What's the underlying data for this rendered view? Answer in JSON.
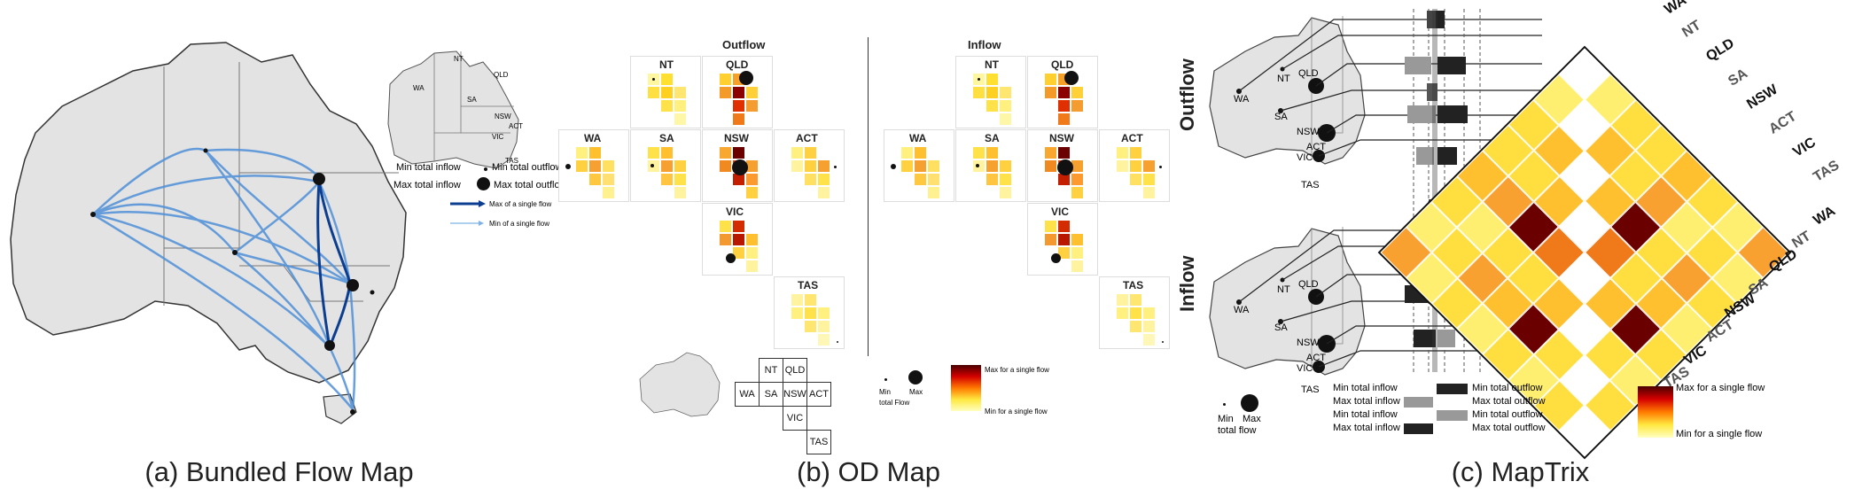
{
  "panel_a": {
    "caption": "(a) Bundled Flow Map",
    "legend": {
      "min_total_inflow": "Min total inflow",
      "min_total_outflow": "Min total outflow",
      "max_total_inflow": "Max total inflow",
      "max_total_outflow": "Max total outflow",
      "max_single": "Max of a single flow",
      "min_single": "Min of a single flow"
    },
    "inset_states": [
      "NT",
      "QLD",
      "WA",
      "SA",
      "NSW",
      "ACT",
      "VIC",
      "TAS"
    ]
  },
  "panel_b": {
    "caption": "(b) OD Map",
    "outflow_title": "Outflow",
    "inflow_title": "Inflow",
    "states": [
      "NT",
      "QLD",
      "WA",
      "SA",
      "NSW",
      "ACT",
      "VIC",
      "TAS"
    ],
    "grid_labels": [
      "NT",
      "QLD",
      "WA",
      "SA",
      "NSW",
      "ACT",
      "VIC",
      "TAS"
    ],
    "legend": {
      "min": "Min",
      "max": "Max",
      "total_flow": "total Flow",
      "max_single": "Max for a single flow",
      "min_single": "Min for a single flow"
    }
  },
  "panel_c": {
    "caption": "(c) MapTrix",
    "outflow_label": "Outflow",
    "inflow_label": "Inflow",
    "map_labels": [
      "NT",
      "QLD",
      "WA",
      "SA",
      "NSW",
      "ACT",
      "VIC",
      "TAS"
    ],
    "top_right_labels": [
      "WA",
      "NT",
      "QLD",
      "SA",
      "NSW",
      "ACT",
      "VIC",
      "TAS"
    ],
    "bottom_right_labels": [
      "WA",
      "NT",
      "QLD",
      "SA",
      "NSW",
      "ACT",
      "VIC",
      "TAS"
    ],
    "legend": {
      "min_total_inflow": "Min total inflow",
      "max_total_inflow_1": "Max total inflow",
      "min_total_inflow_2": "Min total inflow",
      "max_total_inflow_2": "Max total inflow",
      "min_total_outflow": "Min total outflow",
      "max_total_outflow_1": "Max total outflow",
      "min_total_outflow_2": "Min total outflow",
      "max_total_outflow_2": "Max total outflow",
      "min": "Min",
      "max": "Max",
      "total_flow": "total flow",
      "max_single": "Max for a single flow",
      "min_single": "Min for a single flow"
    }
  },
  "colors": {
    "map_fill": "#e3e3e3",
    "flow_dark": "#0b3d91",
    "flow_light": "#7fb2e5",
    "heat_max": "#5c0000",
    "heat_min": "#ffffa8"
  }
}
